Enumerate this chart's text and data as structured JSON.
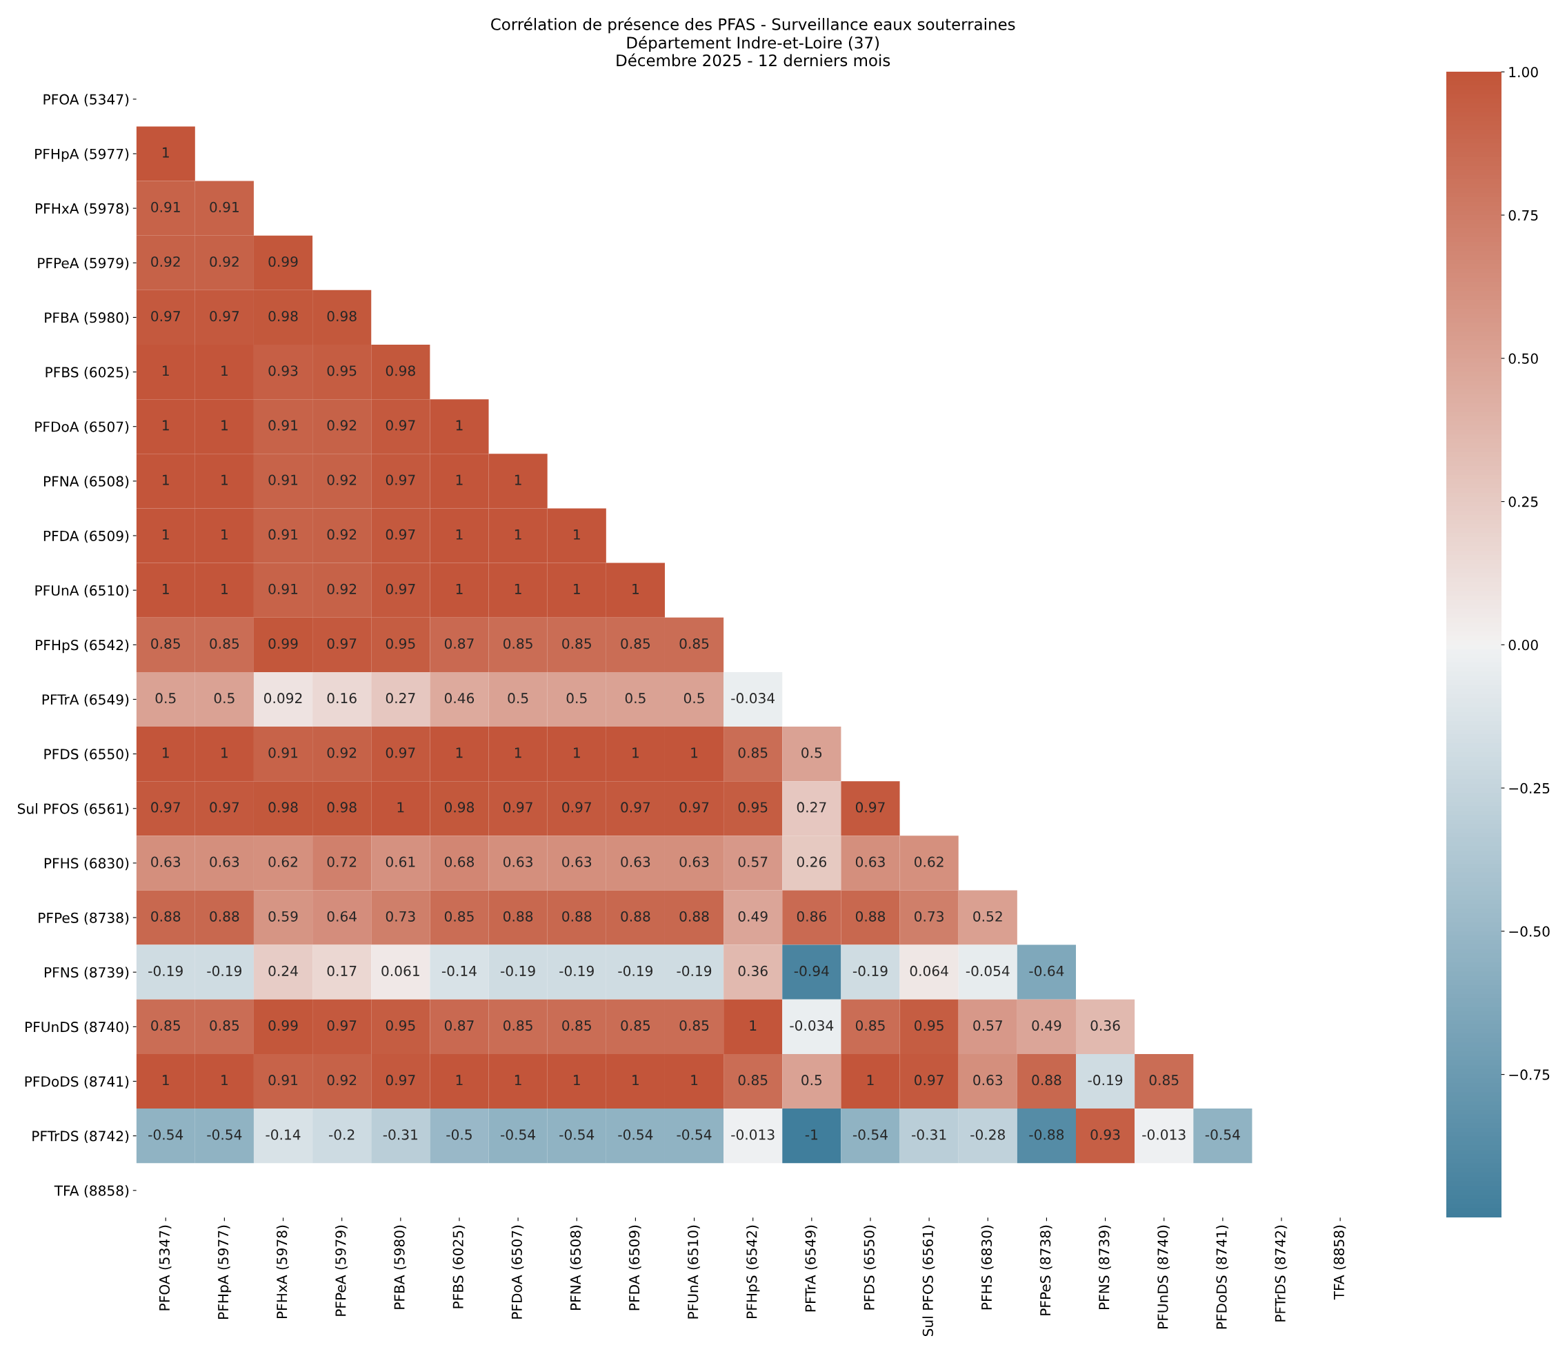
{
  "chart_data": {
    "type": "heatmap",
    "title": "Corrélation de présence des PFAS - Surveillance eaux souterraines\nDépartement Indre-et-Loire (37)\nDécembre 2025 - 12 derniers mois",
    "categories": [
      "PFOA (5347)",
      "PFHpA (5977)",
      "PFHxA (5978)",
      "PFPeA (5979)",
      "PFBA (5980)",
      "PFBS (6025)",
      "PFDoA (6507)",
      "PFNA (6508)",
      "PFDA (6509)",
      "PFUnA (6510)",
      "PFHpS (6542)",
      "PFTrA (6549)",
      "PFDS (6550)",
      "Sul PFOS (6561)",
      "PFHS (6830)",
      "PFPeS (8738)",
      "PFNS (8739)",
      "PFUnDS (8740)",
      "PFDoDS (8741)",
      "PFTrDS (8742)",
      "TFA (8858)"
    ],
    "y_categories": [
      "PFOA (5347)",
      "PFHpA (5977)",
      "PFHxA (5978)",
      "PFPeA (5979)",
      "PFBA (5980)",
      "PFBS (6025)",
      "PFDoA (6507)",
      "PFNA (6508)",
      "PFDA (6509)",
      "PFUnA (6510)",
      "PFHpS (6542)",
      "PFTrA (6549)",
      "PFDS (6550)",
      "Sul PFOS (6561)",
      "PFHS (6830)",
      "PFPeS (8738)",
      "PFNS (8739)",
      "PFUnDS (8740)",
      "PFDoDS (8741)",
      "PFTrDS (8742)",
      "TFA (8858)"
    ],
    "cells": [
      [
        null,
        null,
        null,
        null,
        null,
        null,
        null,
        null,
        null,
        null,
        null,
        null,
        null,
        null,
        null,
        null,
        null,
        null,
        null,
        null,
        null
      ],
      [
        1,
        null,
        null,
        null,
        null,
        null,
        null,
        null,
        null,
        null,
        null,
        null,
        null,
        null,
        null,
        null,
        null,
        null,
        null,
        null,
        null
      ],
      [
        0.91,
        0.91,
        null,
        null,
        null,
        null,
        null,
        null,
        null,
        null,
        null,
        null,
        null,
        null,
        null,
        null,
        null,
        null,
        null,
        null,
        null
      ],
      [
        0.92,
        0.92,
        0.99,
        null,
        null,
        null,
        null,
        null,
        null,
        null,
        null,
        null,
        null,
        null,
        null,
        null,
        null,
        null,
        null,
        null,
        null
      ],
      [
        0.97,
        0.97,
        0.98,
        0.98,
        null,
        null,
        null,
        null,
        null,
        null,
        null,
        null,
        null,
        null,
        null,
        null,
        null,
        null,
        null,
        null,
        null
      ],
      [
        1,
        1,
        0.93,
        0.95,
        0.98,
        null,
        null,
        null,
        null,
        null,
        null,
        null,
        null,
        null,
        null,
        null,
        null,
        null,
        null,
        null,
        null
      ],
      [
        1,
        1,
        0.91,
        0.92,
        0.97,
        1,
        null,
        null,
        null,
        null,
        null,
        null,
        null,
        null,
        null,
        null,
        null,
        null,
        null,
        null,
        null
      ],
      [
        1,
        1,
        0.91,
        0.92,
        0.97,
        1,
        1,
        null,
        null,
        null,
        null,
        null,
        null,
        null,
        null,
        null,
        null,
        null,
        null,
        null,
        null
      ],
      [
        1,
        1,
        0.91,
        0.92,
        0.97,
        1,
        1,
        1,
        null,
        null,
        null,
        null,
        null,
        null,
        null,
        null,
        null,
        null,
        null,
        null,
        null
      ],
      [
        1,
        1,
        0.91,
        0.92,
        0.97,
        1,
        1,
        1,
        1,
        null,
        null,
        null,
        null,
        null,
        null,
        null,
        null,
        null,
        null,
        null,
        null
      ],
      [
        0.85,
        0.85,
        0.99,
        0.97,
        0.95,
        0.87,
        0.85,
        0.85,
        0.85,
        0.85,
        null,
        null,
        null,
        null,
        null,
        null,
        null,
        null,
        null,
        null,
        null
      ],
      [
        0.5,
        0.5,
        0.092,
        0.16,
        0.27,
        0.46,
        0.5,
        0.5,
        0.5,
        0.5,
        -0.034,
        null,
        null,
        null,
        null,
        null,
        null,
        null,
        null,
        null,
        null
      ],
      [
        1,
        1,
        0.91,
        0.92,
        0.97,
        1,
        1,
        1,
        1,
        1,
        0.85,
        0.5,
        null,
        null,
        null,
        null,
        null,
        null,
        null,
        null,
        null
      ],
      [
        0.97,
        0.97,
        0.98,
        0.98,
        1,
        0.98,
        0.97,
        0.97,
        0.97,
        0.97,
        0.95,
        0.27,
        0.97,
        null,
        null,
        null,
        null,
        null,
        null,
        null,
        null
      ],
      [
        0.63,
        0.63,
        0.62,
        0.72,
        0.61,
        0.68,
        0.63,
        0.63,
        0.63,
        0.63,
        0.57,
        0.26,
        0.63,
        0.62,
        null,
        null,
        null,
        null,
        null,
        null,
        null
      ],
      [
        0.88,
        0.88,
        0.59,
        0.64,
        0.73,
        0.85,
        0.88,
        0.88,
        0.88,
        0.88,
        0.49,
        0.86,
        0.88,
        0.73,
        0.52,
        null,
        null,
        null,
        null,
        null,
        null
      ],
      [
        -0.19,
        -0.19,
        0.24,
        0.17,
        0.061,
        -0.14,
        -0.19,
        -0.19,
        -0.19,
        -0.19,
        0.36,
        -0.94,
        -0.19,
        0.064,
        -0.054,
        -0.64,
        null,
        null,
        null,
        null,
        null
      ],
      [
        0.85,
        0.85,
        0.99,
        0.97,
        0.95,
        0.87,
        0.85,
        0.85,
        0.85,
        0.85,
        1,
        -0.034,
        0.85,
        0.95,
        0.57,
        0.49,
        0.36,
        null,
        null,
        null,
        null
      ],
      [
        1,
        1,
        0.91,
        0.92,
        0.97,
        1,
        1,
        1,
        1,
        1,
        0.85,
        0.5,
        1,
        0.97,
        0.63,
        0.88,
        -0.19,
        0.85,
        null,
        null,
        null
      ],
      [
        -0.54,
        -0.54,
        -0.14,
        -0.2,
        -0.31,
        -0.5,
        -0.54,
        -0.54,
        -0.54,
        -0.54,
        -0.013,
        -1,
        -0.54,
        -0.31,
        -0.28,
        -0.88,
        0.93,
        -0.013,
        -0.54,
        null,
        null
      ],
      [
        null,
        null,
        null,
        null,
        null,
        null,
        null,
        null,
        null,
        null,
        null,
        null,
        null,
        null,
        null,
        null,
        null,
        null,
        null,
        null,
        null
      ]
    ],
    "data_labels": true,
    "clim": [
      -1,
      1
    ],
    "cticks": [
      {
        "value": -0.75,
        "label": "−0.75"
      },
      {
        "value": -0.5,
        "label": "−0.50"
      },
      {
        "value": -0.25,
        "label": "−0.25"
      },
      {
        "value": 0,
        "label": "0.00"
      },
      {
        "value": 0.25,
        "label": "0.25"
      },
      {
        "value": 0.5,
        "label": "0.50"
      },
      {
        "value": 0.75,
        "label": "0.75"
      },
      {
        "value": 1,
        "label": "1.00"
      }
    ],
    "grid": false
  }
}
